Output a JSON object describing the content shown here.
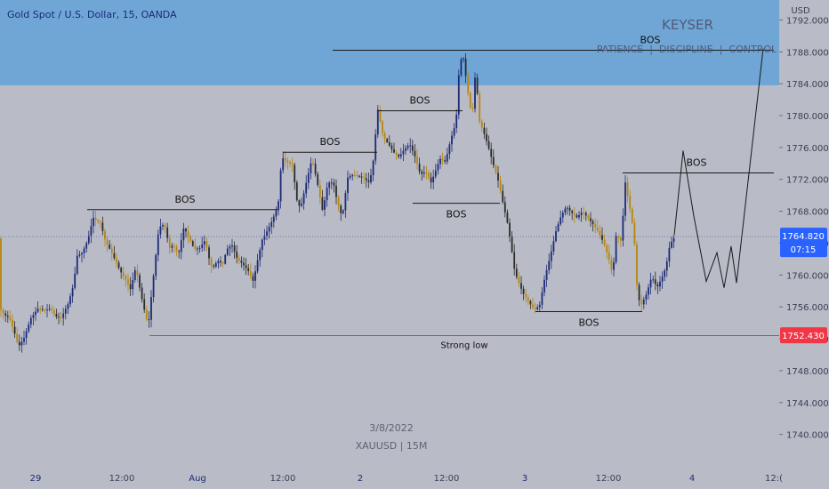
{
  "symbol_title": "Gold Spot / U.S. Dollar, 15, OANDA",
  "currency": "USD",
  "watermark": {
    "brand": "KEYSER",
    "tagline": "PATIENCE  |  DISCIPLINE  |  CONTROL",
    "date": "3/8/2022",
    "symbol": "XAUUSD | 15M"
  },
  "price_tag": {
    "price": "1764.820",
    "countdown": "07:15"
  },
  "support_tag": "1752.430",
  "strong_low_label": "Strong low",
  "colors": {
    "background": "#b9bcc6",
    "supply_zone": "#6fa6d6",
    "up_candle": "#1c2a78",
    "down_candle": "#b8860b",
    "support_line": "#e53935",
    "price_tag": "#2962ff",
    "support_tag": "#f23645",
    "title_text": "#1c2a78"
  },
  "chart_data": {
    "type": "candlestick",
    "title": "Gold Spot / U.S. Dollar, 15, OANDA",
    "ylim": [
      1736.5,
      1794.5
    ],
    "y_ticks": [
      "1792.000",
      "1788.000",
      "1784.000",
      "1780.000",
      "1776.000",
      "1772.000",
      "1768.000",
      "1764.000",
      "1760.000",
      "1756.000",
      "1752.000",
      "1748.000",
      "1744.000",
      "1740.000"
    ],
    "x_ticks": [
      "29",
      "12:00",
      "Aug",
      "12:00",
      "2",
      "12:00",
      "3",
      "12:00",
      "4",
      "12:("
    ],
    "grid": false,
    "zones": [
      {
        "name": "supply",
        "from": 1783.8,
        "to": 1794.5
      }
    ],
    "series_path": [
      [
        0,
        1756.0
      ],
      [
        6,
        1755.0
      ],
      [
        12,
        1754.6
      ],
      [
        18,
        1752.6
      ],
      [
        22,
        1751.0
      ],
      [
        28,
        1752.0
      ],
      [
        36,
        1754.6
      ],
      [
        44,
        1755.8
      ],
      [
        52,
        1755.6
      ],
      [
        58,
        1755.8
      ],
      [
        64,
        1754.8
      ],
      [
        70,
        1754.6
      ],
      [
        78,
        1756.4
      ],
      [
        84,
        1758.8
      ],
      [
        88,
        1762.4
      ],
      [
        94,
        1762.8
      ],
      [
        100,
        1764.4
      ],
      [
        106,
        1767.2
      ],
      [
        110,
        1766.8
      ],
      [
        114,
        1766.6
      ],
      [
        120,
        1764.2
      ],
      [
        126,
        1763.0
      ],
      [
        132,
        1761.6
      ],
      [
        138,
        1760.2
      ],
      [
        142,
        1759.6
      ],
      [
        148,
        1758.2
      ],
      [
        154,
        1761.0
      ],
      [
        160,
        1757.4
      ],
      [
        164,
        1755.4
      ],
      [
        168,
        1753.6
      ],
      [
        172,
        1758.0
      ],
      [
        176,
        1762.0
      ],
      [
        180,
        1766.0
      ],
      [
        186,
        1766.4
      ],
      [
        192,
        1763.4
      ],
      [
        196,
        1763.8
      ],
      [
        202,
        1762.6
      ],
      [
        208,
        1766.0
      ],
      [
        214,
        1764.6
      ],
      [
        220,
        1763.2
      ],
      [
        226,
        1763.4
      ],
      [
        232,
        1764.4
      ],
      [
        236,
        1762.2
      ],
      [
        240,
        1760.8
      ],
      [
        246,
        1761.8
      ],
      [
        252,
        1761.4
      ],
      [
        256,
        1763.2
      ],
      [
        262,
        1763.8
      ],
      [
        268,
        1762.0
      ],
      [
        274,
        1761.4
      ],
      [
        280,
        1760.6
      ],
      [
        286,
        1759.2
      ],
      [
        290,
        1761.4
      ],
      [
        296,
        1764.4
      ],
      [
        302,
        1765.6
      ],
      [
        308,
        1767.0
      ],
      [
        314,
        1768.8
      ],
      [
        318,
        1774.8
      ],
      [
        324,
        1774.2
      ],
      [
        330,
        1773.8
      ],
      [
        336,
        1768.6
      ],
      [
        340,
        1768.8
      ],
      [
        346,
        1771.8
      ],
      [
        352,
        1774.6
      ],
      [
        358,
        1771.6
      ],
      [
        364,
        1768.0
      ],
      [
        370,
        1771.6
      ],
      [
        376,
        1771.6
      ],
      [
        380,
        1769.4
      ],
      [
        386,
        1767.2
      ],
      [
        392,
        1772.2
      ],
      [
        398,
        1772.6
      ],
      [
        404,
        1772.4
      ],
      [
        410,
        1772.2
      ],
      [
        416,
        1771.6
      ],
      [
        420,
        1773.2
      ],
      [
        426,
        1780.8
      ],
      [
        432,
        1777.4
      ],
      [
        438,
        1776.4
      ],
      [
        444,
        1775.4
      ],
      [
        450,
        1774.8
      ],
      [
        456,
        1775.8
      ],
      [
        462,
        1776.4
      ],
      [
        468,
        1774.8
      ],
      [
        474,
        1772.6
      ],
      [
        480,
        1773.0
      ],
      [
        486,
        1771.6
      ],
      [
        490,
        1772.8
      ],
      [
        496,
        1774.6
      ],
      [
        502,
        1774.2
      ],
      [
        508,
        1777.0
      ],
      [
        514,
        1779.2
      ],
      [
        518,
        1786.8
      ],
      [
        522,
        1787.4
      ],
      [
        528,
        1782.4
      ],
      [
        532,
        1779.8
      ],
      [
        536,
        1785.8
      ],
      [
        540,
        1779.4
      ],
      [
        546,
        1777.6
      ],
      [
        550,
        1776.2
      ],
      [
        556,
        1773.8
      ],
      [
        562,
        1771.6
      ],
      [
        566,
        1769.4
      ],
      [
        572,
        1766.4
      ],
      [
        576,
        1763.6
      ],
      [
        580,
        1760.4
      ],
      [
        586,
        1758.6
      ],
      [
        590,
        1757.6
      ],
      [
        596,
        1756.6
      ],
      [
        602,
        1755.6
      ],
      [
        608,
        1756.2
      ],
      [
        614,
        1759.8
      ],
      [
        620,
        1762.4
      ],
      [
        626,
        1765.4
      ],
      [
        632,
        1767.4
      ],
      [
        638,
        1768.6
      ],
      [
        644,
        1767.8
      ],
      [
        650,
        1767.2
      ],
      [
        656,
        1768.0
      ],
      [
        662,
        1767.2
      ],
      [
        668,
        1766.4
      ],
      [
        674,
        1765.4
      ],
      [
        680,
        1764.0
      ],
      [
        686,
        1762.0
      ],
      [
        690,
        1760.0
      ],
      [
        694,
        1765.0
      ],
      [
        700,
        1764.2
      ],
      [
        704,
        1771.8
      ],
      [
        710,
        1768.0
      ],
      [
        714,
        1765.2
      ],
      [
        718,
        1757.4
      ],
      [
        722,
        1756.2
      ],
      [
        728,
        1757.6
      ],
      [
        734,
        1759.8
      ],
      [
        740,
        1758.4
      ],
      [
        746,
        1759.8
      ],
      [
        750,
        1761.0
      ],
      [
        754,
        1763.6
      ],
      [
        758,
        1764.6
      ]
    ],
    "projection_path": [
      [
        758,
        1765.0
      ],
      [
        768,
        1775.6
      ],
      [
        780,
        1767.4
      ],
      [
        794,
        1759.2
      ],
      [
        806,
        1762.8
      ],
      [
        814,
        1758.4
      ],
      [
        822,
        1763.6
      ],
      [
        828,
        1759.0
      ],
      [
        858,
        1788.4
      ]
    ],
    "levels": [
      {
        "label": "BOS",
        "price": 1768.2,
        "x_from": 98,
        "x_to": 312
      },
      {
        "label": "BOS",
        "price": 1775.4,
        "x_from": 318,
        "x_to": 424
      },
      {
        "label": "BOS",
        "price": 1780.6,
        "x_from": 424,
        "x_to": 520
      },
      {
        "label": "BOS",
        "price": 1788.2,
        "x_from": 374,
        "x_to": 870
      },
      {
        "label": "BOS",
        "price": 1769.0,
        "x_from": 464,
        "x_to": 562
      },
      {
        "label": "BOS",
        "price": 1772.8,
        "x_from": 700,
        "x_to": 870
      },
      {
        "label": "BOS",
        "price": 1755.4,
        "x_from": 602,
        "x_to": 722
      },
      {
        "label": "Strong low",
        "price": 1752.4,
        "x_from": 168,
        "x_to": 876
      }
    ]
  }
}
